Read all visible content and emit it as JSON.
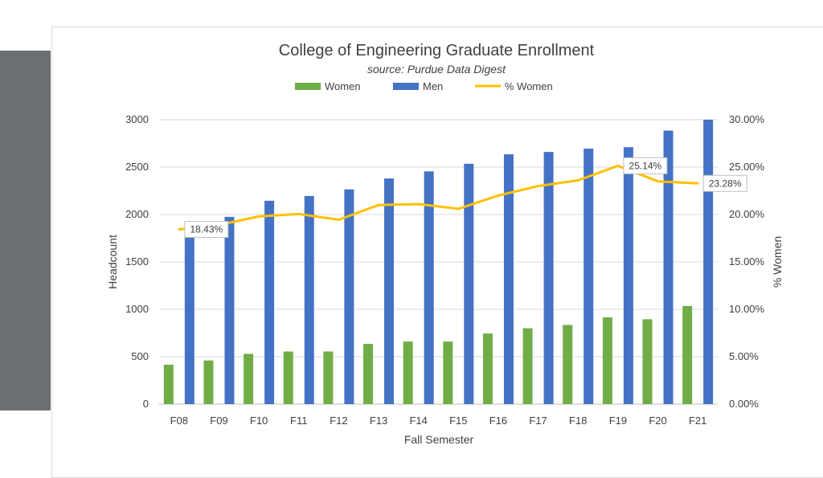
{
  "chart_data": {
    "type": "bar",
    "title": "College of Engineering Graduate Enrollment",
    "subtitle": "source: Purdue Data Digest",
    "categories": [
      "F08",
      "F09",
      "F10",
      "F11",
      "F12",
      "F13",
      "F14",
      "F15",
      "F16",
      "F17",
      "F18",
      "F19",
      "F20",
      "F21"
    ],
    "series": [
      {
        "name": "Women",
        "type": "bar",
        "axis": "left",
        "color": "#70ad47",
        "values": [
          415,
          460,
          530,
          555,
          555,
          635,
          660,
          660,
          745,
          800,
          835,
          915,
          895,
          1035
        ]
      },
      {
        "name": "Men",
        "type": "bar",
        "axis": "left",
        "color": "#4472c4",
        "values": [
          1840,
          1975,
          2145,
          2195,
          2265,
          2380,
          2455,
          2535,
          2635,
          2660,
          2695,
          2710,
          2885,
          3000
        ]
      },
      {
        "name": "% Women",
        "type": "line",
        "axis": "right",
        "color": "#ffc000",
        "values": [
          18.43,
          18.9,
          19.8,
          20.05,
          19.45,
          21.0,
          21.1,
          20.6,
          22.0,
          23.0,
          23.6,
          25.14,
          23.5,
          23.28
        ]
      }
    ],
    "legend": [
      "Women",
      "Men",
      "% Women"
    ],
    "legend_position": "top",
    "xlabel": "Fall Semester",
    "ylabel": "Headcount",
    "y2label": "% Women",
    "ylim": [
      0,
      3000
    ],
    "yticks": [
      "0",
      "500",
      "1000",
      "1500",
      "2000",
      "2500",
      "3000"
    ],
    "y2lim": [
      0,
      30
    ],
    "y2ticks": [
      "0.00%",
      "5.00%",
      "10.00%",
      "15.00%",
      "20.00%",
      "25.00%",
      "30.00%"
    ],
    "grid": true,
    "data_labels": [
      {
        "series": "% Women",
        "index": 0,
        "text": "18.43%"
      },
      {
        "series": "% Women",
        "index": 11,
        "text": "25.14%"
      },
      {
        "series": "% Women",
        "index": 13,
        "text": "23.28%"
      }
    ]
  }
}
